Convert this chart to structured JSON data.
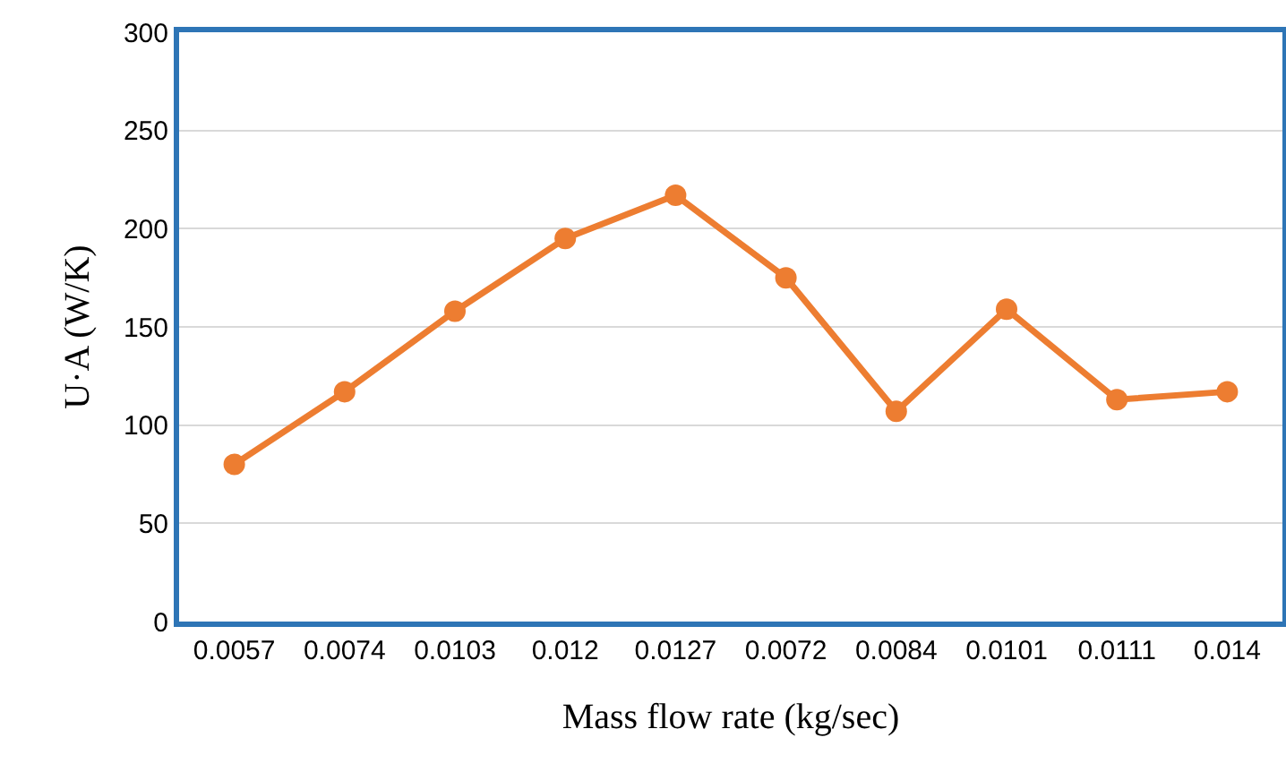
{
  "chart_data": {
    "type": "line",
    "categories": [
      "0.0057",
      "0.0074",
      "0.0103",
      "0.012",
      "0.0127",
      "0.0072",
      "0.0084",
      "0.0101",
      "0.0111",
      "0.014"
    ],
    "series": [
      {
        "color": "#ed7d31",
        "values": [
          80,
          117,
          158,
          195,
          217,
          175,
          107,
          159,
          113,
          117
        ]
      }
    ],
    "xlabel": "Mass flow rate (kg/sec)",
    "ylabel": "U·A (W/K)",
    "ylim": [
      0,
      300
    ],
    "yticks": [
      0,
      50,
      100,
      150,
      200,
      250,
      300
    ],
    "grid": "y",
    "legend": false,
    "marker": "circle",
    "line_style": "solid"
  }
}
